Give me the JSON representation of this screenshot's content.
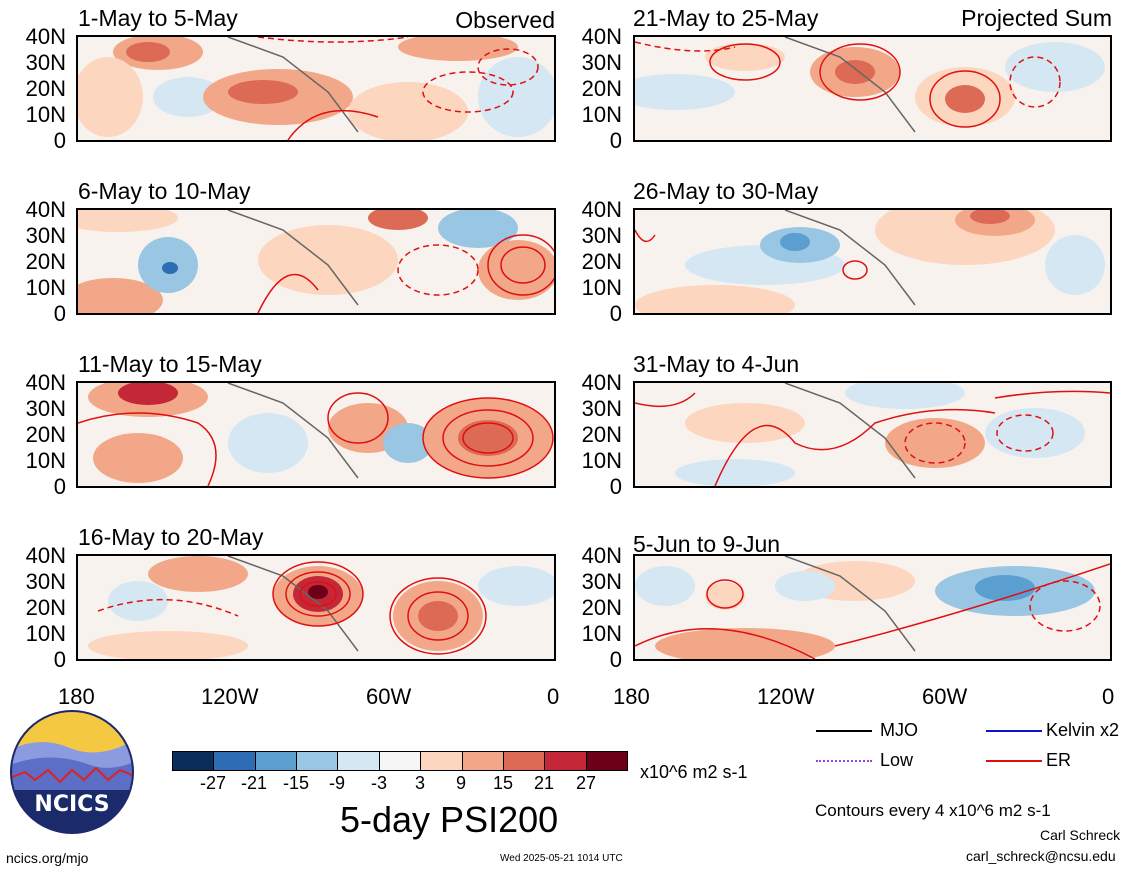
{
  "observed_label": "Observed",
  "projected_label": "Projected Sum",
  "panels_left": [
    {
      "title": "1-May to 5-May"
    },
    {
      "title": "6-May to 10-May"
    },
    {
      "title": "11-May to 15-May"
    },
    {
      "title": "16-May to 20-May"
    }
  ],
  "panels_right": [
    {
      "title": "21-May to 25-May"
    },
    {
      "title": "26-May to 30-May"
    },
    {
      "title": "31-May to 4-Jun"
    },
    {
      "title": "5-Jun to 9-Jun"
    }
  ],
  "lat_labels": [
    "40N",
    "30N",
    "20N",
    "10N",
    "0"
  ],
  "lon_labels": [
    "180",
    "120W",
    "60W",
    "0"
  ],
  "legend": {
    "items": [
      {
        "label": "MJO",
        "color": "#000000",
        "style": "solid"
      },
      {
        "label": "Kelvin x2",
        "color": "#1010d0",
        "style": "solid"
      },
      {
        "label": "Low",
        "color": "#a040e0",
        "style": "dotted"
      },
      {
        "label": "ER",
        "color": "#e01010",
        "style": "solid"
      }
    ],
    "contour_note": "Contours every 4 x10^6 m2 s-1"
  },
  "colorbar": {
    "colors": [
      "#0b2d5c",
      "#2e6db3",
      "#5a9fd0",
      "#98c6e3",
      "#d4e7f3",
      "#f6f6f6",
      "#fcd6bf",
      "#f2a888",
      "#dc6a55",
      "#c42838",
      "#6b0018"
    ],
    "tick_labels": [
      "-27",
      "-21",
      "-15",
      "-9",
      "-3",
      "3",
      "9",
      "15",
      "21",
      "27"
    ],
    "units": "x10^6 m2 s-1"
  },
  "main_title": "5-day PSI200",
  "logo_text": "NCICS",
  "website": "ncics.org/mjo",
  "timestamp": "Wed 2025-05-21 1014 UTC",
  "author": "Carl Schreck",
  "email": "carl_schreck@ncsu.edu"
}
